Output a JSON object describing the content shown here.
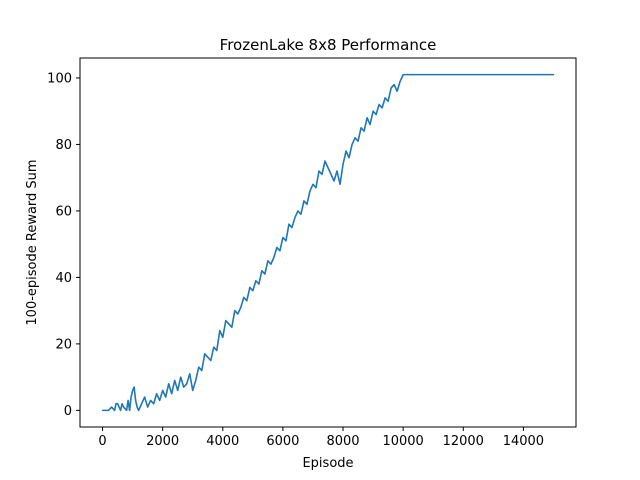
{
  "chart_data": {
    "type": "line",
    "title": "FrozenLake 8x8 Performance",
    "xlabel": "Episode",
    "ylabel": "100-episode Reward Sum",
    "xlim": [
      -750,
      15750
    ],
    "ylim": [
      -5,
      106
    ],
    "xticks": [
      0,
      2000,
      4000,
      6000,
      8000,
      10000,
      12000,
      14000
    ],
    "yticks": [
      0,
      20,
      40,
      60,
      80,
      100
    ],
    "grid": false,
    "color": "#1f77b4",
    "series": [
      {
        "x": [
          0,
          200,
          300,
          400,
          450,
          500,
          600,
          650,
          700,
          800,
          850,
          900,
          950,
          1000,
          1050,
          1100,
          1150,
          1200,
          1300,
          1400,
          1500,
          1600,
          1700,
          1800,
          1900,
          2000,
          2100,
          2200,
          2300,
          2400,
          2500,
          2600,
          2700,
          2800,
          2900,
          3000,
          3100,
          3200,
          3300,
          3400,
          3500,
          3600,
          3700,
          3800,
          3900,
          4000,
          4100,
          4200,
          4300,
          4400,
          4500,
          4600,
          4700,
          4800,
          4900,
          5000,
          5100,
          5200,
          5300,
          5400,
          5500,
          5600,
          5700,
          5800,
          5900,
          6000,
          6100,
          6200,
          6300,
          6400,
          6500,
          6600,
          6700,
          6800,
          6900,
          7000,
          7100,
          7200,
          7300,
          7400,
          7500,
          7600,
          7700,
          7800,
          7900,
          8000,
          8100,
          8200,
          8300,
          8400,
          8500,
          8600,
          8700,
          8800,
          8900,
          9000,
          9100,
          9200,
          9300,
          9400,
          9500,
          9600,
          9700,
          9800,
          9900,
          10000,
          15000
        ],
        "y": [
          0,
          0,
          1,
          0,
          2,
          2,
          0,
          2,
          1,
          0,
          3,
          0,
          4,
          6,
          7,
          3,
          1,
          0,
          2,
          4,
          1,
          3,
          2,
          5,
          3,
          6,
          4,
          8,
          5,
          9,
          6,
          10,
          7,
          8,
          11,
          6,
          9,
          13,
          12,
          17,
          16,
          15,
          19,
          18,
          24,
          22,
          27,
          26,
          25,
          30,
          29,
          31,
          34,
          33,
          37,
          36,
          39,
          38,
          42,
          41,
          45,
          44,
          46,
          49,
          48,
          52,
          51,
          56,
          55,
          58,
          60,
          59,
          63,
          62,
          66,
          68,
          67,
          72,
          71,
          75,
          73,
          71,
          69,
          72,
          68,
          74,
          78,
          76,
          80,
          82,
          81,
          85,
          84,
          88,
          86,
          90,
          89,
          92,
          91,
          94,
          93,
          97,
          98,
          96,
          99,
          101,
          101
        ]
      }
    ]
  }
}
